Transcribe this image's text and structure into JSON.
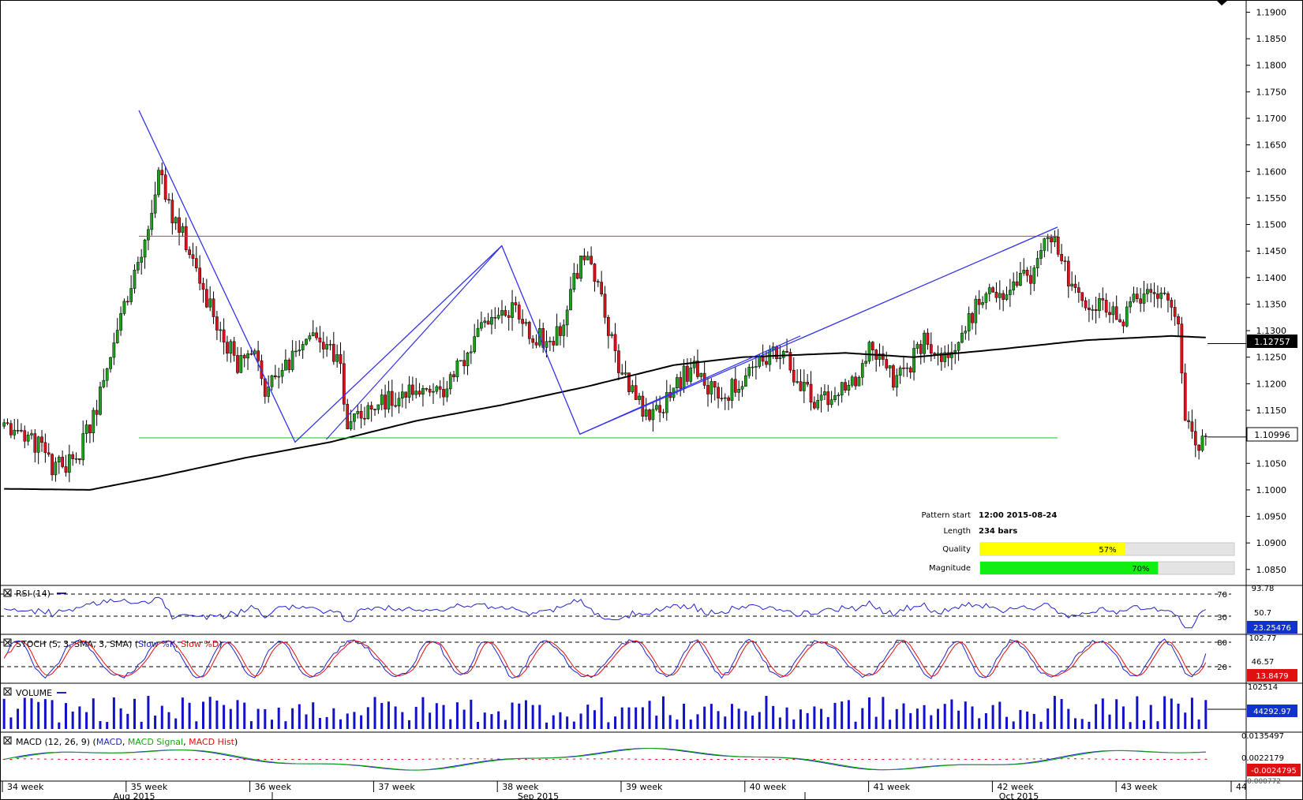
{
  "chart_data": {
    "type": "candlestick",
    "instrument_last": "1.10996",
    "ma_last": "1.12757",
    "price_axis": {
      "ticks": [
        "1.1900",
        "1.1850",
        "1.1800",
        "1.1750",
        "1.1700",
        "1.1650",
        "1.1600",
        "1.1550",
        "1.1500",
        "1.1450",
        "1.1400",
        "1.1350",
        "1.1300",
        "1.1250",
        "1.1200",
        "1.1150",
        "1.1100",
        "1.1050",
        "1.1000",
        "1.0950",
        "1.0900",
        "1.0850"
      ],
      "min": 1.082,
      "max": 1.192
    },
    "time_axis": {
      "weeks": [
        "34 week",
        "35 week",
        "36 week",
        "37 week",
        "38 week",
        "39 week",
        "40 week",
        "41 week",
        "42 week",
        "43 week",
        "44"
      ],
      "months": [
        "Aug 2015",
        "Sep 2015",
        "Oct 2015"
      ]
    },
    "pattern": {
      "resistance": 1.1478,
      "support": 1.1098,
      "zigzag": [
        [
          1.1715,
          0
        ],
        [
          1.109,
          0.17
        ],
        [
          1.146,
          0.395
        ],
        [
          1.1105,
          0.48
        ],
        [
          1.1495,
          1.0
        ]
      ],
      "info": {
        "start_label": "Pattern start",
        "start_value": "12:00 2015-08-24",
        "length_label": "Length",
        "length_value": "234 bars",
        "quality_label": "Quality",
        "quality_value": "57%",
        "quality_pct": 57,
        "magnitude_label": "Magnitude",
        "magnitude_value": "70%",
        "magnitude_pct": 70
      }
    },
    "colors": {
      "up": "#1aa31a",
      "down": "#e0101a",
      "pattern": "#3333ee",
      "resistance": "#e03030",
      "support": "#19c219",
      "ma": "#000000",
      "quality": "#ffff00",
      "magnitude": "#11ee11"
    },
    "indicators": {
      "rsi": {
        "label": "RSI (14)",
        "levels": [
          "70",
          "30"
        ],
        "axis_top": "93.78",
        "axis_mid": "50.7",
        "last": "23.25476"
      },
      "stoch": {
        "label": "STOCH (5, 3, SMA, 3, SMA)",
        "k": "Slow %K",
        "d": "Slow %D",
        "levels": [
          "80",
          "20"
        ],
        "axis_top": "102.77",
        "axis_mid": "46.57",
        "last": "13.8479"
      },
      "volume": {
        "label": "VOLUME",
        "axis_top": "102514",
        "last": "44292.97"
      },
      "macd": {
        "label": "MACD (12, 26, 9)",
        "macd": "MACD",
        "signal": "MACD Signal",
        "hist": "MACD Hist",
        "axis_top": "0.0135497",
        "axis_mid": "0.0022179",
        "last": "-0.0024795",
        "axis_bottom": "-0.000772"
      }
    }
  }
}
